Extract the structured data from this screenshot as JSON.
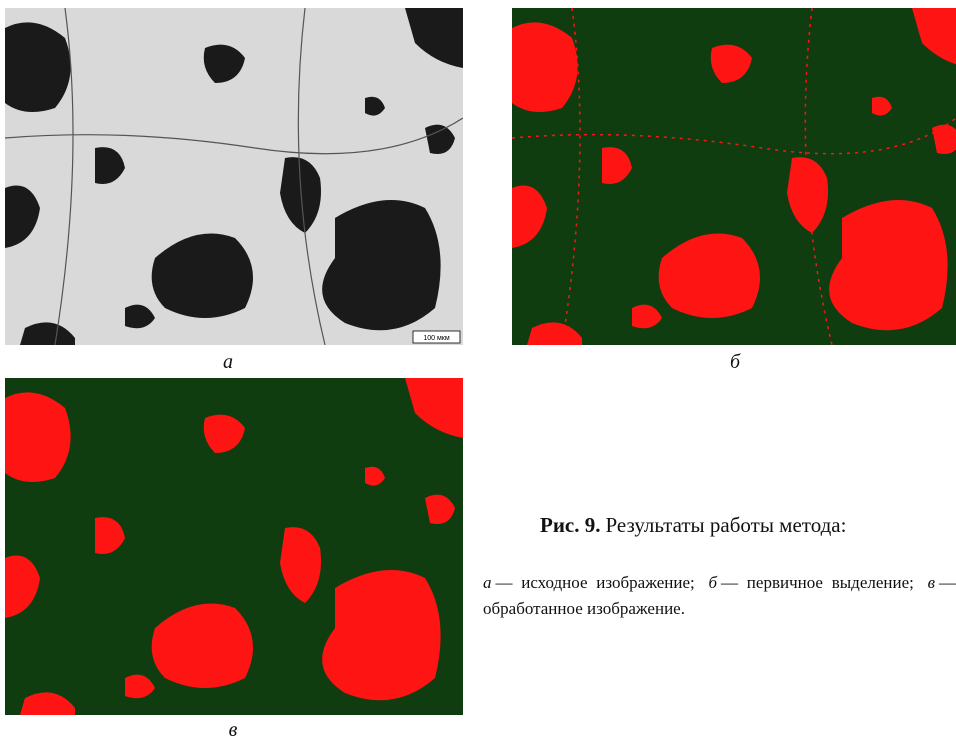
{
  "figure": {
    "panels": [
      {
        "label": "а",
        "scale_bar": "100 мкм"
      },
      {
        "label": "б"
      },
      {
        "label": "в"
      }
    ],
    "caption": {
      "number": "Рис. 9.",
      "title": "Результаты работы метода:",
      "items": [
        {
          "letter": "а",
          "text": "— исходное изображение;"
        },
        {
          "letter": "б",
          "text": "— первичное выделение;"
        },
        {
          "letter": "в",
          "text": "— обработанное изображение."
        }
      ]
    }
  }
}
